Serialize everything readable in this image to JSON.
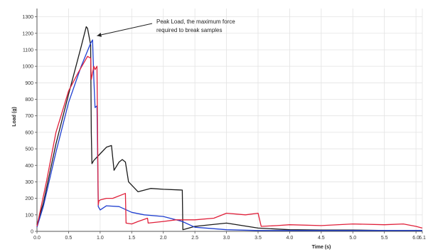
{
  "chart_data": {
    "type": "line",
    "title": "",
    "xlabel": "Time (s)",
    "ylabel": "Load (g)",
    "xlim": [
      0,
      6.1
    ],
    "ylim": [
      0,
      1350
    ],
    "x_ticks": [
      0.0,
      0.5,
      1.0,
      1.5,
      2.0,
      2.5,
      3.0,
      3.5,
      4.0,
      4.5,
      5.0,
      5.5,
      6.0,
      6.1
    ],
    "x_tick_labels": [
      "0.0",
      "0.5",
      "1.0",
      "1.5",
      "2.0",
      "2.5",
      "3.0",
      "3.5",
      "4.0",
      "4.5",
      "5.0",
      "5.5",
      "6.0",
      "6.1"
    ],
    "y_ticks": [
      0,
      100,
      200,
      300,
      400,
      500,
      600,
      700,
      800,
      900,
      1000,
      1100,
      1200,
      1300
    ],
    "y_tick_labels": [
      "0",
      "100",
      "200",
      "300",
      "400",
      "500",
      "600",
      "700",
      "800",
      "900",
      "1000",
      "1100",
      "1200",
      "1300"
    ],
    "grid": true,
    "legend": "none",
    "annotation": {
      "lines": [
        "Peak Load, the maximum force",
        "required to break samples"
      ],
      "arrow_target": [
        0.95,
        1185
      ]
    },
    "series": [
      {
        "color": "#1a1a1a",
        "x": [
          0.0,
          0.1,
          0.3,
          0.5,
          0.7,
          0.78,
          0.8,
          0.85,
          0.86,
          0.87,
          0.9,
          1.0,
          1.1,
          1.18,
          1.22,
          1.3,
          1.35,
          1.4,
          1.45,
          1.6,
          1.8,
          2.0,
          2.3,
          2.31,
          2.5,
          3.0,
          3.5,
          4.0,
          4.5,
          5.0,
          5.5,
          6.0,
          6.1
        ],
        "y": [
          40,
          170,
          530,
          830,
          1120,
          1240,
          1230,
          1130,
          600,
          410,
          430,
          470,
          510,
          520,
          370,
          420,
          435,
          420,
          300,
          240,
          260,
          255,
          250,
          10,
          30,
          50,
          20,
          10,
          8,
          8,
          5,
          5,
          5
        ]
      },
      {
        "color": "#1f3fd0",
        "x": [
          0.0,
          0.1,
          0.3,
          0.5,
          0.7,
          0.85,
          0.88,
          0.9,
          0.92,
          0.95,
          0.97,
          1.0,
          1.1,
          1.3,
          1.5,
          1.7,
          2.0,
          2.3,
          2.5,
          3.0,
          3.5,
          4.0,
          5.0,
          6.1
        ],
        "y": [
          25,
          150,
          480,
          780,
          1000,
          1140,
          1160,
          920,
          750,
          760,
          150,
          130,
          155,
          150,
          115,
          100,
          90,
          60,
          25,
          10,
          5,
          5,
          5,
          5
        ]
      },
      {
        "color": "#e0203a",
        "x": [
          0.0,
          0.15,
          0.3,
          0.5,
          0.65,
          0.8,
          0.85,
          0.86,
          0.88,
          0.9,
          0.92,
          0.95,
          0.97,
          0.98,
          1.0,
          1.1,
          1.2,
          1.4,
          1.41,
          1.5,
          1.6,
          1.75,
          1.76,
          2.0,
          2.2,
          2.5,
          2.8,
          3.0,
          3.3,
          3.5,
          3.55,
          3.8,
          4.0,
          4.5,
          5.0,
          5.5,
          5.8,
          6.0,
          6.1
        ],
        "y": [
          30,
          300,
          600,
          850,
          960,
          1060,
          1050,
          920,
          960,
          1000,
          980,
          1000,
          160,
          185,
          190,
          200,
          200,
          230,
          50,
          45,
          60,
          80,
          50,
          60,
          70,
          70,
          80,
          110,
          100,
          110,
          30,
          35,
          40,
          35,
          45,
          40,
          45,
          30,
          20
        ]
      }
    ]
  }
}
